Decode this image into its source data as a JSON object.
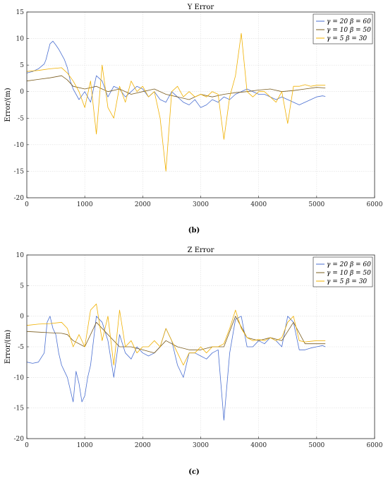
{
  "chart_data": [
    {
      "type": "line",
      "title": "Y Error",
      "xlabel": "",
      "ylabel": "Error/(m)",
      "caption": "(b)",
      "xlim": [
        0,
        6000
      ],
      "ylim": [
        -20,
        15
      ],
      "xticks": [
        "0",
        "1000",
        "2000",
        "3000",
        "4000",
        "5000",
        "6000"
      ],
      "yticks": [
        "-20",
        "-15",
        "-10",
        "-5",
        "0",
        "5",
        "10",
        "15"
      ],
      "grid": true,
      "legend_position": "top-right",
      "series": [
        {
          "name": "γ = 20  β = 60",
          "color": "#4a6fd1",
          "x": [
            0,
            100,
            200,
            300,
            330,
            400,
            450,
            500,
            550,
            600,
            650,
            700,
            750,
            800,
            900,
            1000,
            1100,
            1200,
            1300,
            1400,
            1500,
            1600,
            1700,
            1800,
            1900,
            2000,
            2100,
            2200,
            2300,
            2400,
            2500,
            2600,
            2700,
            2800,
            2900,
            3000,
            3100,
            3200,
            3300,
            3400,
            3500,
            3600,
            3700,
            3800,
            3900,
            4000,
            4100,
            4200,
            4300,
            4400,
            4500,
            4600,
            4700,
            4800,
            4900,
            5000,
            5100,
            5150
          ],
          "y": [
            3.5,
            3.8,
            4.3,
            5.2,
            6,
            9,
            9.5,
            8.8,
            8,
            7,
            6,
            4.5,
            2,
            0.5,
            -1.5,
            0,
            -2,
            3,
            2,
            -1,
            1,
            0.5,
            -1,
            0,
            1,
            0.5,
            -1,
            0,
            -1.5,
            -2,
            0,
            -1,
            -2,
            -2.5,
            -1.5,
            -3,
            -2.5,
            -1.5,
            -2,
            -1,
            -1.5,
            -0.5,
            0,
            0.5,
            0,
            -0.5,
            -0.5,
            -1,
            -1.5,
            -1,
            -1.5,
            -2,
            -2.5,
            -2,
            -1.5,
            -1,
            -0.8,
            -0.9
          ]
        },
        {
          "name": "γ = 10  β = 50",
          "color": "#7a5c1e",
          "x": [
            0,
            200,
            400,
            600,
            700,
            800,
            1000,
            1200,
            1400,
            1600,
            1800,
            2000,
            2200,
            2400,
            2600,
            2800,
            3000,
            3200,
            3400,
            3600,
            3800,
            4000,
            4200,
            4400,
            4600,
            4800,
            5000,
            5150
          ],
          "y": [
            2,
            2.3,
            2.6,
            3,
            2.2,
            1,
            0.5,
            1,
            0,
            0.5,
            -0.5,
            0,
            0.5,
            -0.5,
            -1,
            -1.5,
            -0.5,
            -1,
            -0.5,
            -0.2,
            0,
            0.3,
            0.5,
            0,
            0.2,
            0.5,
            0.8,
            0.7
          ]
        },
        {
          "name": "γ = 5    β = 30",
          "color": "#f0b000",
          "x": [
            0,
            200,
            400,
            600,
            700,
            800,
            900,
            1000,
            1100,
            1200,
            1300,
            1400,
            1500,
            1600,
            1700,
            1800,
            1900,
            2000,
            2100,
            2200,
            2300,
            2400,
            2500,
            2600,
            2700,
            2800,
            2900,
            3000,
            3100,
            3200,
            3300,
            3400,
            3500,
            3600,
            3700,
            3800,
            3900,
            4000,
            4100,
            4200,
            4300,
            4400,
            4500,
            4600,
            4700,
            4800,
            4900,
            5000,
            5150
          ],
          "y": [
            3.8,
            4,
            4.3,
            4.5,
            3.5,
            2,
            0,
            -3,
            2,
            -8,
            5,
            -3,
            -5,
            1,
            -2,
            2,
            0,
            1,
            -1,
            0,
            -5,
            -15,
            0,
            1,
            -1,
            0,
            -1,
            -0.5,
            -1,
            0,
            -0.5,
            -9,
            -1,
            3,
            11,
            0,
            -1,
            0,
            0,
            -1,
            -2,
            0,
            -6,
            1,
            1,
            1.3,
            1,
            1.2,
            1.2
          ]
        }
      ]
    },
    {
      "type": "line",
      "title": "Z Error",
      "xlabel": "",
      "ylabel": "Error/(m)",
      "caption": "(c)",
      "xlim": [
        0,
        6000
      ],
      "ylim": [
        -20,
        10
      ],
      "xticks": [
        "0",
        "1000",
        "2000",
        "3000",
        "4000",
        "5000",
        "6000"
      ],
      "yticks": [
        "-20",
        "-15",
        "-10",
        "-5",
        "0",
        "5",
        "10"
      ],
      "grid": true,
      "legend_position": "top-right",
      "series": [
        {
          "name": "γ = 20  β = 60",
          "color": "#4a6fd1",
          "x": [
            0,
            100,
            200,
            300,
            350,
            400,
            450,
            500,
            550,
            600,
            650,
            700,
            750,
            800,
            850,
            900,
            950,
            1000,
            1050,
            1100,
            1200,
            1300,
            1400,
            1500,
            1600,
            1700,
            1800,
            1900,
            2000,
            2100,
            2200,
            2300,
            2400,
            2500,
            2600,
            2700,
            2800,
            2900,
            3000,
            3100,
            3200,
            3300,
            3400,
            3500,
            3600,
            3700,
            3800,
            3900,
            4000,
            4100,
            4200,
            4300,
            4400,
            4500,
            4600,
            4700,
            4800,
            4900,
            5000,
            5100,
            5150
          ],
          "y": [
            -7.5,
            -7.7,
            -7.5,
            -6,
            -1,
            0,
            -2,
            -3,
            -6,
            -8,
            -9,
            -10,
            -12,
            -14,
            -9,
            -11,
            -14,
            -13,
            -10,
            -8,
            0,
            -1,
            -4,
            -10,
            -3,
            -6,
            -7,
            -5,
            -6,
            -6.5,
            -6,
            -5,
            -2,
            -4,
            -8,
            -10,
            -6,
            -6,
            -6.5,
            -7,
            -6,
            -5.5,
            -17,
            -6,
            -0.5,
            0,
            -5,
            -5,
            -4,
            -4.5,
            -3.5,
            -4,
            -5,
            0,
            -1,
            -5.5,
            -5.5,
            -5.2,
            -5,
            -4.8,
            -5
          ]
        },
        {
          "name": "γ = 10  β = 50",
          "color": "#7a5c1e",
          "x": [
            0,
            200,
            400,
            600,
            700,
            800,
            1000,
            1200,
            1400,
            1600,
            1800,
            2000,
            2200,
            2400,
            2600,
            2800,
            3000,
            3200,
            3400,
            3600,
            3800,
            4000,
            4200,
            4400,
            4600,
            4800,
            5000,
            5150
          ],
          "y": [
            -2.5,
            -2.6,
            -2.7,
            -2.8,
            -3,
            -4,
            -5,
            -1,
            -3,
            -5,
            -5,
            -5.5,
            -6,
            -4,
            -5,
            -5.5,
            -5.5,
            -5,
            -5,
            0,
            -3.5,
            -4,
            -3.5,
            -4,
            -1,
            -4.5,
            -4.5,
            -4.5
          ]
        },
        {
          "name": "γ = 5    β = 30",
          "color": "#f0b000",
          "x": [
            0,
            200,
            400,
            600,
            700,
            800,
            900,
            1000,
            1100,
            1200,
            1300,
            1400,
            1500,
            1600,
            1700,
            1800,
            1900,
            2000,
            2100,
            2200,
            2300,
            2400,
            2500,
            2600,
            2700,
            2800,
            2900,
            3000,
            3100,
            3200,
            3300,
            3400,
            3500,
            3600,
            3700,
            3800,
            3900,
            4000,
            4100,
            4200,
            4300,
            4400,
            4500,
            4600,
            4700,
            4800,
            4900,
            5000,
            5150
          ],
          "y": [
            -1.5,
            -1.3,
            -1.2,
            -1,
            -2,
            -5,
            -3,
            -5,
            1,
            2,
            -4,
            0,
            -8,
            1,
            -5,
            -4,
            -6,
            -5,
            -5,
            -4,
            -5,
            -2,
            -4,
            -6,
            -8,
            -6,
            -6,
            -5,
            -6,
            -5,
            -5,
            -4.5,
            -2,
            1,
            -2,
            -3.5,
            -4,
            -3.8,
            -4,
            -3.5,
            -4,
            -3.5,
            -1,
            0,
            -4,
            -4.2,
            -4.1,
            -4,
            -4
          ]
        }
      ]
    }
  ]
}
